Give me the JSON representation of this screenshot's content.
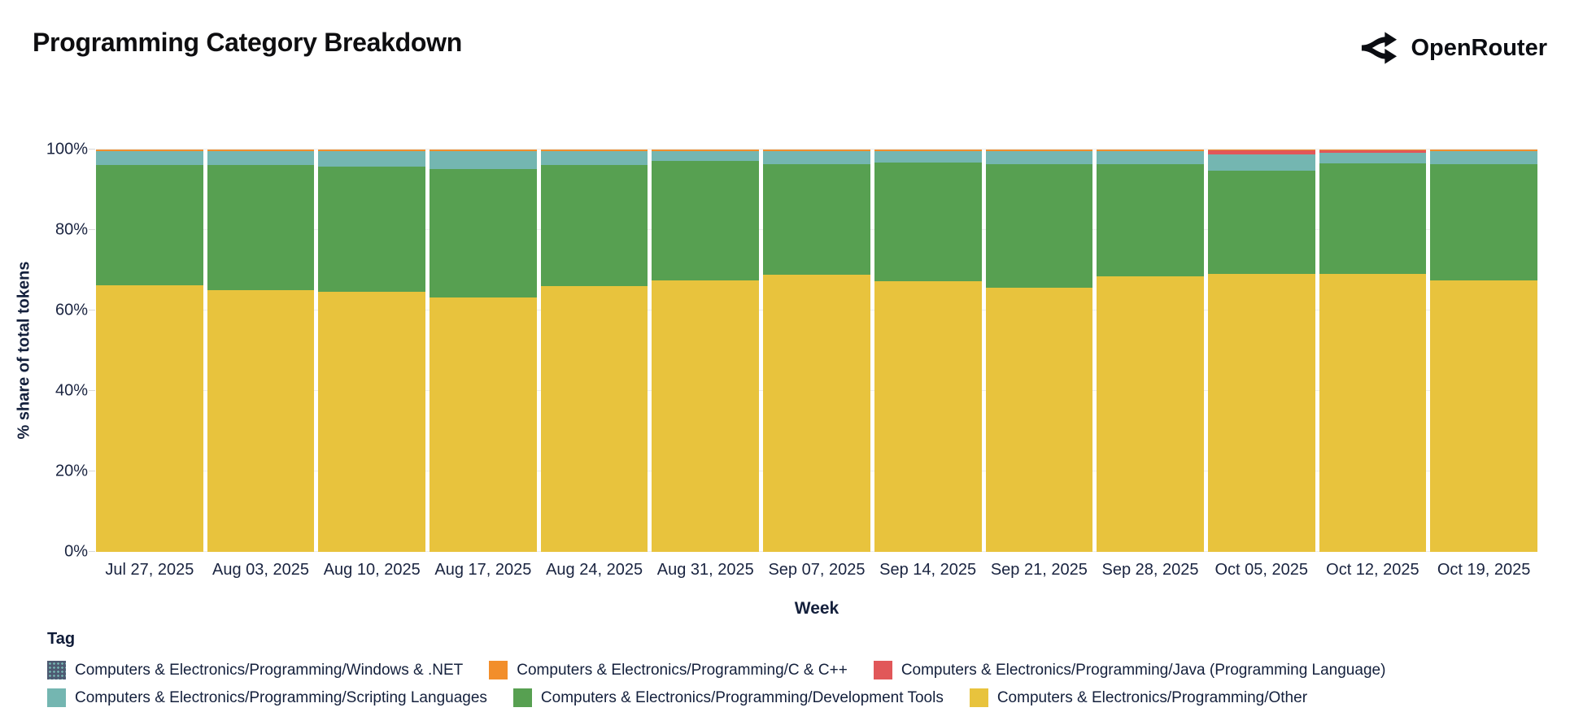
{
  "header": {
    "title": "Programming Category Breakdown",
    "brand": "OpenRouter"
  },
  "chart_data": {
    "type": "bar",
    "stacked": true,
    "normalized": "percent",
    "title": "Programming Category Breakdown",
    "xlabel": "Week",
    "ylabel": "% share of total tokens",
    "legend_title": "Tag",
    "legend_position": "bottom",
    "grid": true,
    "ylim": [
      0,
      100
    ],
    "yticks": [
      "0%",
      "20%",
      "40%",
      "60%",
      "80%",
      "100%"
    ],
    "categories": [
      "Jul 27, 2025",
      "Aug 03, 2025",
      "Aug 10, 2025",
      "Aug 17, 2025",
      "Aug 24, 2025",
      "Aug 31, 2025",
      "Sep 07, 2025",
      "Sep 14, 2025",
      "Sep 21, 2025",
      "Sep 28, 2025",
      "Oct 05, 2025",
      "Oct 12, 2025",
      "Oct 19, 2025"
    ],
    "series": [
      {
        "name": "Computers & Electronics/Programming/Windows & .NET",
        "color": "#4d5a72",
        "pattern": "dots",
        "values": [
          0,
          0,
          0,
          0,
          0,
          0,
          0,
          0,
          0,
          0,
          0,
          0,
          0
        ]
      },
      {
        "name": "Computers & Electronics/Programming/C & C++",
        "color": "#f28e2b",
        "values": [
          0.3,
          0.3,
          0.3,
          0.3,
          0.3,
          0.3,
          0.3,
          0.3,
          0.3,
          0.3,
          0.2,
          0.2,
          0.3
        ]
      },
      {
        "name": "Computers & Electronics/Programming/Java (Programming Language)",
        "color": "#e15759",
        "values": [
          0,
          0,
          0,
          0,
          0,
          0,
          0,
          0,
          0,
          0,
          1.0,
          0.6,
          0
        ]
      },
      {
        "name": "Computers & Electronics/Programming/Scripting Languages",
        "color": "#74b6b1",
        "values": [
          3.5,
          3.6,
          4.0,
          4.5,
          3.5,
          2.6,
          3.3,
          3.0,
          3.3,
          3.3,
          4.0,
          2.6,
          3.3
        ]
      },
      {
        "name": "Computers & Electronics/Programming/Development Tools",
        "color": "#57a051",
        "values": [
          30.0,
          31.1,
          31.1,
          31.9,
          30.1,
          29.7,
          27.5,
          29.5,
          30.8,
          28.0,
          25.7,
          27.5,
          29.0
        ]
      },
      {
        "name": "Computers & Electronics/Programming/Other",
        "color": "#e8c33d",
        "values": [
          66.2,
          65.0,
          64.6,
          63.3,
          66.1,
          67.4,
          68.9,
          67.2,
          65.6,
          68.4,
          69.1,
          69.1,
          67.4
        ]
      }
    ]
  }
}
